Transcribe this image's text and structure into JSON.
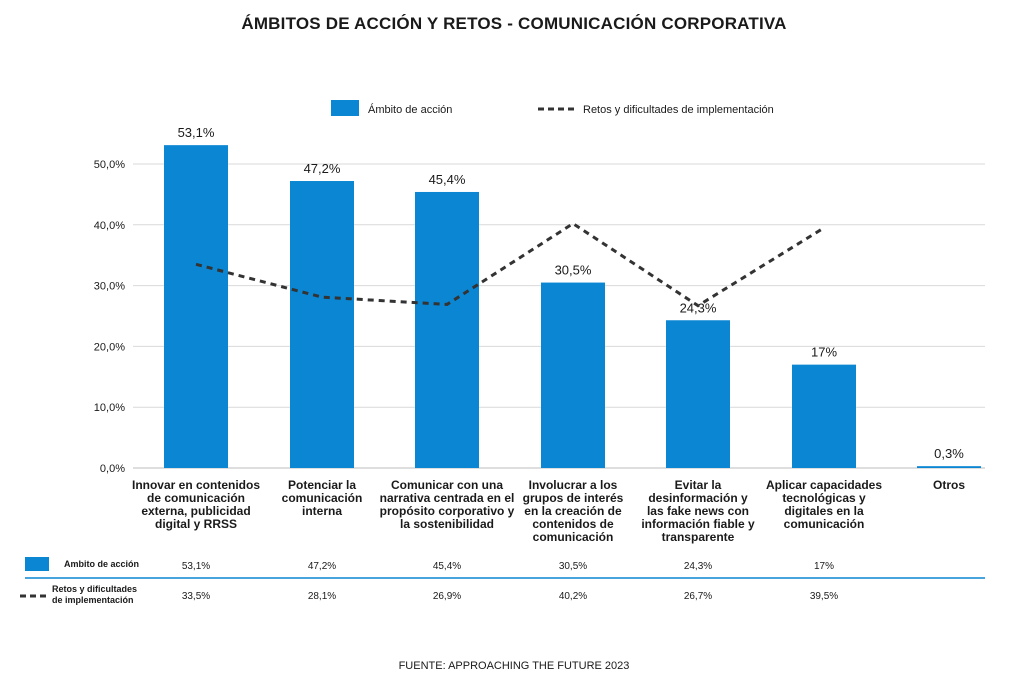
{
  "title": "ÁMBITOS DE ACCIÓN Y RETOS - COMUNICACIÓN CORPORATIVA",
  "source": "FUENTE: APPROACHING THE FUTURE 2023",
  "legend": {
    "bar_label": "Ámbito de acción",
    "line_label": "Retos y dificultades de implementación"
  },
  "table": {
    "row1_label": "Ambito de acción",
    "row2_label_line1": "Retos y dificultades",
    "row2_label_line2": "de implementación"
  },
  "colors": {
    "bar": "#0a86d2",
    "line": "#333333",
    "table_rule": "#0a86d2"
  },
  "chart_data": {
    "type": "bar",
    "ylim": [
      0,
      55
    ],
    "yticks": [
      "0,0%",
      "10,0%",
      "20,0%",
      "30,0%",
      "40,0%",
      "50,0%"
    ],
    "ytick_values": [
      0,
      10,
      20,
      30,
      40,
      50
    ],
    "grid": "horizontal",
    "legend_position": "top",
    "categories": [
      [
        "Innovar en contenidos",
        "de comunicación",
        "externa, publicidad",
        "digital y RRSS"
      ],
      [
        "Potenciar la",
        "comunicación",
        "interna"
      ],
      [
        "Comunicar con una",
        "narrativa centrada en el",
        "propósito corporativo y",
        "la sostenibilidad"
      ],
      [
        "Involucrar a los",
        "grupos de interés",
        "en la creación de",
        "contenidos de",
        "comunicación"
      ],
      [
        "Evitar la",
        "desinformación y",
        "las fake news con",
        "información fiable y",
        "transparente"
      ],
      [
        "Aplicar capacidades",
        "tecnológicas y",
        "digitales en la",
        "comunicación"
      ],
      [
        "Otros"
      ]
    ],
    "series": [
      {
        "name": "Ámbito de acción",
        "type": "bar",
        "values": [
          53.1,
          47.2,
          45.4,
          30.5,
          24.3,
          17,
          0.3
        ],
        "labels": [
          "53,1%",
          "47,2%",
          "45,4%",
          "30,5%",
          "24,3%",
          "17%",
          "0,3%"
        ],
        "table_labels": [
          "53,1%",
          "47,2%",
          "45,4%",
          "30,5%",
          "24,3%",
          "17%",
          ""
        ]
      },
      {
        "name": "Retos y dificultades de implementación",
        "type": "line",
        "style": "dashed",
        "values": [
          33.5,
          28.1,
          26.9,
          40.2,
          26.7,
          39.5,
          null
        ],
        "table_labels": [
          "33,5%",
          "28,1%",
          "26,9%",
          "40,2%",
          "26,7%",
          "39,5%",
          ""
        ]
      }
    ]
  }
}
